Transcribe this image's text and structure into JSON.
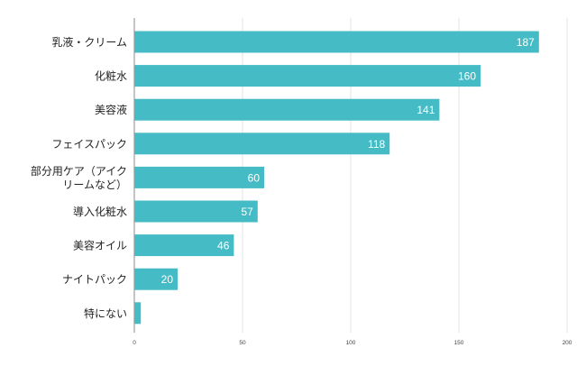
{
  "chart_data": {
    "type": "bar",
    "orientation": "horizontal",
    "categories": [
      [
        "乳液・クリーム"
      ],
      [
        "化粧水"
      ],
      [
        "美容液"
      ],
      [
        "フェイスパック"
      ],
      [
        "部分用ケア（アイク",
        "リームなど）"
      ],
      [
        "導入化粧水"
      ],
      [
        "美容オイル"
      ],
      [
        "ナイトパック"
      ],
      [
        "特にない"
      ]
    ],
    "values": [
      187,
      160,
      141,
      118,
      60,
      57,
      46,
      20,
      3
    ],
    "value_labels": [
      "187",
      "160",
      "141",
      "118",
      "60",
      "57",
      "46",
      "20",
      ""
    ],
    "xlim": [
      0,
      200
    ],
    "xticks": [
      0,
      50,
      100,
      150,
      200
    ],
    "grid": true,
    "bar_color": "#45bcc5",
    "title": "",
    "xlabel": "",
    "ylabel": ""
  }
}
